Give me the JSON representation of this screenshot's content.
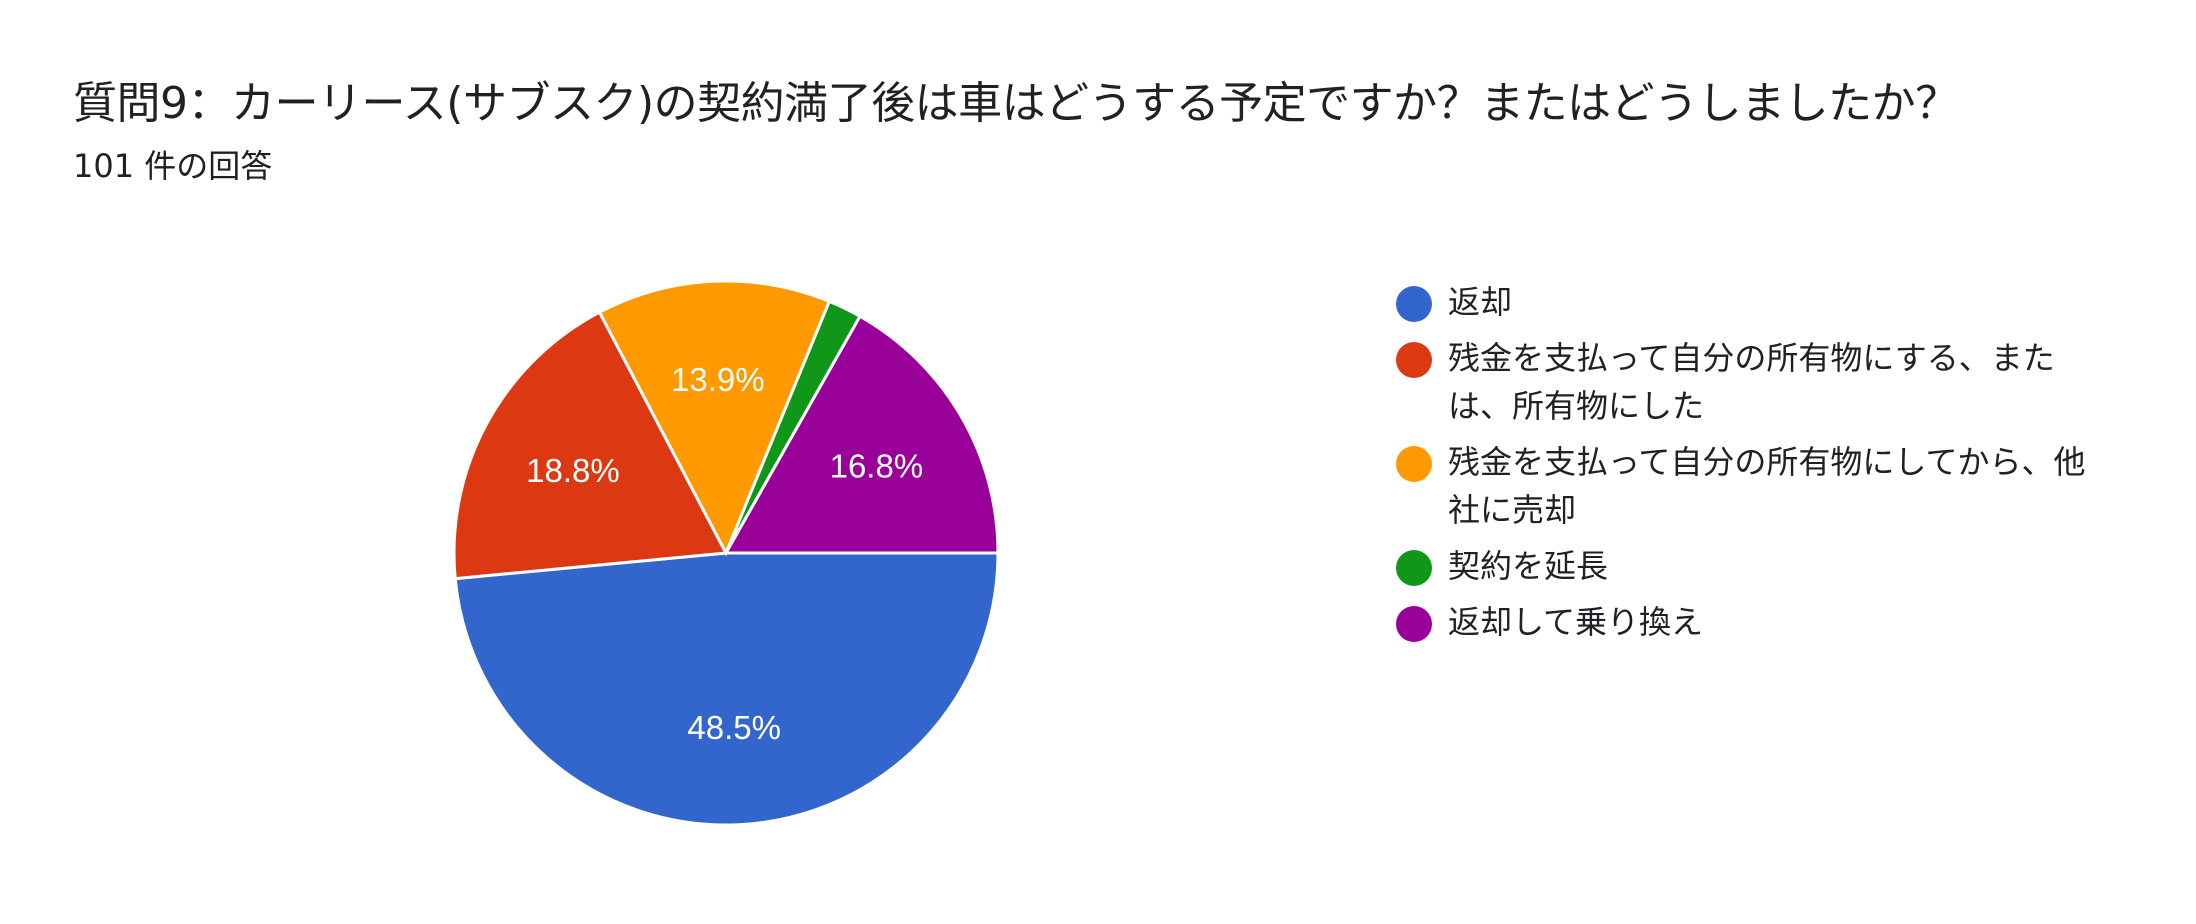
{
  "header": {
    "title": "質問9：カーリース(サブスク)の契約満了後は車はどうする予定ですか？またはどうしましたか？",
    "response_count": "101 件の回答"
  },
  "chart_data": {
    "type": "pie",
    "title": "質問9：カーリース(サブスク)の契約満了後は車はどうする予定ですか？またはどうしましたか？",
    "subtitle": "101 件の回答",
    "legend_position": "right",
    "categories": [
      "返却",
      "残金を支払って自分の所有物にする、または、所有物にした",
      "残金を支払って自分の所有物にしてから、他社に売却",
      "契約を延長",
      "返却して乗り換え"
    ],
    "values": [
      48.5,
      18.8,
      13.9,
      2.0,
      16.8
    ],
    "labels": [
      "48.5%",
      "18.8%",
      "13.9%",
      "",
      "16.8%"
    ],
    "colors": [
      "#3366cc",
      "#dc3912",
      "#ff9900",
      "#109618",
      "#990099"
    ]
  },
  "legend": {
    "items": [
      {
        "label": "返却",
        "color": "#3366cc"
      },
      {
        "label": "残金を支払って自分の所有物にする、または、所有物にした",
        "color": "#dc3912"
      },
      {
        "label": "残金を支払って自分の所有物にしてから、他社に売却",
        "color": "#ff9900"
      },
      {
        "label": "契約を延長",
        "color": "#109618"
      },
      {
        "label": "返却して乗り換え",
        "color": "#990099"
      }
    ]
  }
}
